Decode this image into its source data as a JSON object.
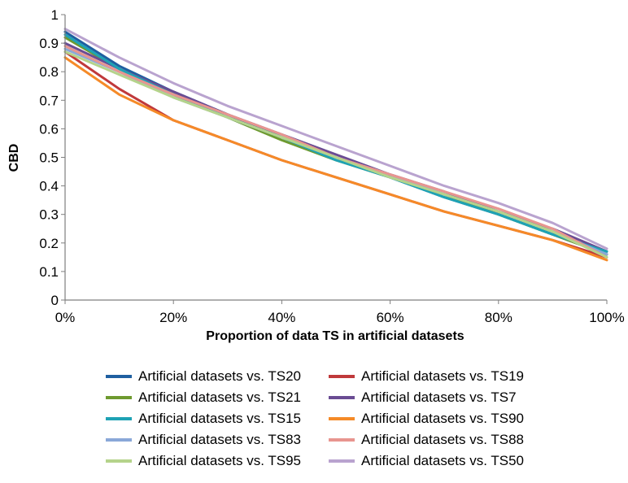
{
  "chart_data": {
    "type": "line",
    "title": "",
    "xlabel": "Proportion of data TS in artificial datasets",
    "ylabel": "CBD",
    "x_tick_labels": [
      "0%",
      "20%",
      "40%",
      "60%",
      "80%",
      "100%"
    ],
    "y_tick_labels": [
      "0",
      "0.1",
      "0.2",
      "0.3",
      "0.4",
      "0.5",
      "0.6",
      "0.7",
      "0.8",
      "0.9",
      "1"
    ],
    "xlim": [
      0,
      100
    ],
    "ylim": [
      0,
      1
    ],
    "grid": false,
    "legend_position": "bottom",
    "x": [
      0,
      10,
      20,
      30,
      40,
      50,
      60,
      70,
      80,
      90,
      100
    ],
    "series": [
      {
        "name": "Artificial datasets vs. TS20",
        "color": "#1f5fa0",
        "values": [
          0.94,
          0.82,
          0.73,
          0.65,
          0.57,
          0.5,
          0.43,
          0.36,
          0.3,
          0.23,
          0.16
        ]
      },
      {
        "name": "Artificial datasets vs. TS19",
        "color": "#c0393b",
        "values": [
          0.87,
          0.74,
          0.63,
          0.56,
          0.49,
          0.43,
          0.37,
          0.31,
          0.26,
          0.21,
          0.15
        ]
      },
      {
        "name": "Artificial datasets vs. TS21",
        "color": "#6e9a2f",
        "values": [
          0.92,
          0.81,
          0.72,
          0.64,
          0.56,
          0.49,
          0.43,
          0.37,
          0.3,
          0.23,
          0.16
        ]
      },
      {
        "name": "Artificial datasets vs. TS7",
        "color": "#6a4c93",
        "values": [
          0.9,
          0.81,
          0.73,
          0.65,
          0.58,
          0.51,
          0.44,
          0.38,
          0.31,
          0.25,
          0.17
        ]
      },
      {
        "name": "Artificial datasets vs. TS15",
        "color": "#1ea2b4",
        "values": [
          0.93,
          0.81,
          0.72,
          0.64,
          0.57,
          0.49,
          0.43,
          0.36,
          0.3,
          0.23,
          0.17
        ]
      },
      {
        "name": "Artificial datasets vs. TS90",
        "color": "#f58a28",
        "values": [
          0.85,
          0.72,
          0.63,
          0.56,
          0.49,
          0.43,
          0.37,
          0.31,
          0.26,
          0.21,
          0.14
        ]
      },
      {
        "name": "Artificial datasets vs. TS83",
        "color": "#8aa8d8",
        "values": [
          0.88,
          0.8,
          0.71,
          0.64,
          0.57,
          0.5,
          0.44,
          0.37,
          0.31,
          0.24,
          0.16
        ]
      },
      {
        "name": "Artificial datasets vs. TS88",
        "color": "#e8958f",
        "values": [
          0.89,
          0.8,
          0.72,
          0.65,
          0.58,
          0.5,
          0.44,
          0.38,
          0.32,
          0.25,
          0.15
        ]
      },
      {
        "name": "Artificial datasets vs. TS95",
        "color": "#b5d38b",
        "values": [
          0.87,
          0.79,
          0.71,
          0.64,
          0.57,
          0.5,
          0.43,
          0.37,
          0.31,
          0.24,
          0.15
        ]
      },
      {
        "name": "Artificial datasets vs. TS50",
        "color": "#b9a3cf",
        "values": [
          0.95,
          0.85,
          0.76,
          0.68,
          0.61,
          0.54,
          0.47,
          0.4,
          0.34,
          0.27,
          0.18
        ]
      }
    ]
  }
}
